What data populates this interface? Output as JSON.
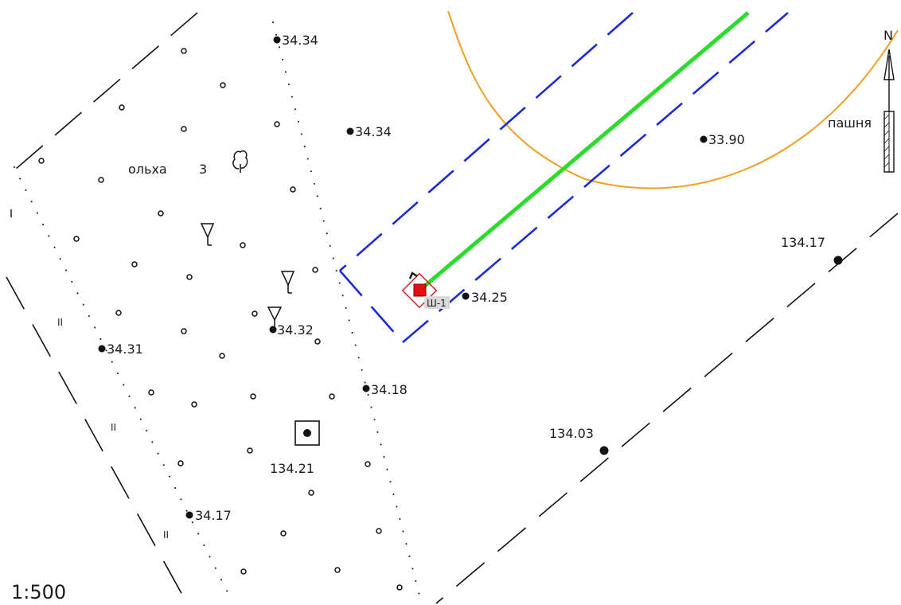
{
  "map": {
    "scale": "1:500",
    "north": "N",
    "labels": {
      "vegetation": "ольха",
      "vegetation_height": "3",
      "field": "пашня",
      "well": "Ш-1",
      "fence_mark": "II"
    },
    "elevations": [
      "34.34",
      "34.34",
      "33.90",
      "134.17",
      "34.25",
      "34.32",
      "34.31",
      "34.18",
      "134.03",
      "134.21",
      "34.17"
    ]
  }
}
